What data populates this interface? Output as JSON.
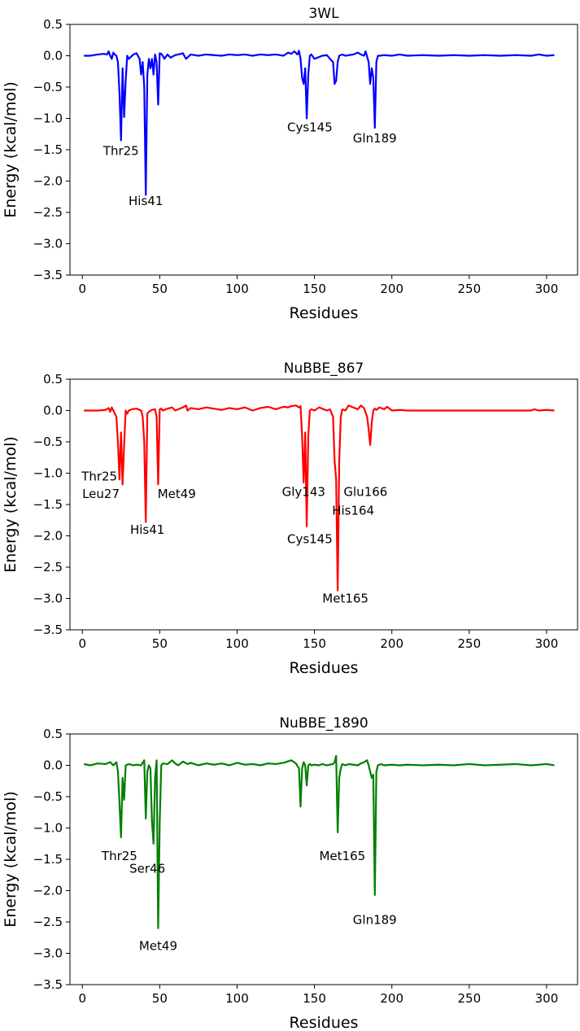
{
  "chart_data": [
    {
      "type": "line",
      "title": "3WL",
      "xlabel": "Residues",
      "ylabel": "Energy (kcal/mol)",
      "xlim": [
        -8,
        320
      ],
      "ylim": [
        -3.5,
        0.5
      ],
      "xticks": [
        0,
        50,
        100,
        150,
        200,
        250,
        300
      ],
      "yticks": [
        0.5,
        0.0,
        -0.5,
        -1.0,
        -1.5,
        -2.0,
        -2.5,
        -3.0,
        -3.5
      ],
      "grid": false,
      "series": [
        {
          "color": "#0000ff",
          "x": [
            1,
            5,
            10,
            14,
            16,
            17,
            18,
            19,
            20,
            21,
            22,
            23,
            24,
            25,
            26,
            27,
            28,
            29,
            30,
            33,
            35,
            37,
            38,
            39,
            40,
            41,
            42,
            43,
            44,
            45,
            46,
            47,
            48,
            49,
            50,
            51,
            52,
            53,
            55,
            57,
            60,
            62,
            65,
            67,
            70,
            75,
            80,
            85,
            90,
            95,
            100,
            105,
            110,
            115,
            120,
            125,
            130,
            133,
            135,
            137,
            139,
            140,
            141,
            142,
            143,
            144,
            145,
            146,
            147,
            148,
            150,
            155,
            158,
            160,
            162,
            163,
            164,
            165,
            166,
            168,
            170,
            175,
            178,
            180,
            182,
            183,
            185,
            186,
            187,
            188,
            189,
            190,
            191,
            192,
            195,
            200,
            205,
            210,
            220,
            230,
            240,
            250,
            260,
            270,
            280,
            290,
            295,
            300,
            305
          ],
          "y": [
            0.0,
            0.0,
            0.02,
            0.03,
            0.02,
            0.07,
            0.0,
            -0.05,
            0.05,
            0.02,
            0.0,
            -0.1,
            -0.6,
            -1.35,
            -0.2,
            -0.98,
            -0.4,
            0.0,
            -0.05,
            0.02,
            0.04,
            -0.05,
            -0.3,
            -0.1,
            -0.5,
            -2.22,
            -0.3,
            -0.05,
            -0.2,
            -0.05,
            -0.3,
            0.02,
            -0.1,
            -0.78,
            0.04,
            0.03,
            0.0,
            -0.05,
            0.02,
            -0.03,
            0.01,
            0.02,
            0.04,
            -0.05,
            0.02,
            0.0,
            0.02,
            0.01,
            0.0,
            0.02,
            0.01,
            0.02,
            0.0,
            0.02,
            0.01,
            0.02,
            0.0,
            0.05,
            0.03,
            0.07,
            0.02,
            0.08,
            -0.05,
            -0.35,
            -0.45,
            -0.2,
            -1.0,
            -0.3,
            0.0,
            0.02,
            -0.05,
            0.0,
            0.01,
            -0.05,
            -0.1,
            -0.45,
            -0.4,
            -0.1,
            0.0,
            0.02,
            0.0,
            0.02,
            0.05,
            0.02,
            0.0,
            0.07,
            -0.1,
            -0.45,
            -0.2,
            -0.35,
            -1.15,
            -0.1,
            0.0,
            0.0,
            0.01,
            0.0,
            0.02,
            0.0,
            0.01,
            0.0,
            0.01,
            0.0,
            0.01,
            0.0,
            0.01,
            0.0,
            0.02,
            0.0,
            0.01
          ]
        }
      ],
      "annotations": [
        {
          "text": "Thr25",
          "x": 25,
          "y": -1.52
        },
        {
          "text": "His41",
          "x": 41,
          "y": -2.32
        },
        {
          "text": "Cys145",
          "x": 147,
          "y": -1.14
        },
        {
          "text": "Gln189",
          "x": 189,
          "y": -1.32
        }
      ]
    },
    {
      "type": "line",
      "title": "NuBBE_867",
      "xlabel": "Residues",
      "ylabel": "Energy (kcal/mol)",
      "xlim": [
        -8,
        320
      ],
      "ylim": [
        -3.5,
        0.5
      ],
      "xticks": [
        0,
        50,
        100,
        150,
        200,
        250,
        300
      ],
      "yticks": [
        0.5,
        0.0,
        -0.5,
        -1.0,
        -1.5,
        -2.0,
        -2.5,
        -3.0,
        -3.5
      ],
      "grid": false,
      "series": [
        {
          "color": "#ff0000",
          "x": [
            1,
            5,
            10,
            15,
            17,
            18,
            19,
            20,
            21,
            22,
            23,
            24,
            25,
            26,
            27,
            28,
            29,
            30,
            32,
            35,
            38,
            39,
            40,
            41,
            42,
            43,
            45,
            47,
            48,
            49,
            50,
            51,
            52,
            55,
            58,
            60,
            65,
            67,
            68,
            70,
            75,
            80,
            85,
            90,
            95,
            100,
            105,
            110,
            115,
            120,
            125,
            130,
            133,
            135,
            138,
            140,
            141,
            142,
            143,
            144,
            145,
            146,
            147,
            148,
            150,
            153,
            155,
            158,
            160,
            162,
            163,
            164,
            165,
            166,
            167,
            168,
            170,
            172,
            175,
            178,
            180,
            182,
            184,
            185,
            186,
            187,
            188,
            189,
            190,
            192,
            195,
            197,
            200,
            205,
            210,
            215,
            220,
            230,
            240,
            250,
            260,
            270,
            280,
            290,
            292,
            295,
            300,
            305
          ],
          "y": [
            0.0,
            0.0,
            0.0,
            0.01,
            0.04,
            -0.02,
            0.05,
            0.0,
            -0.05,
            -0.1,
            -0.5,
            -1.1,
            -0.35,
            -1.18,
            -0.55,
            0.0,
            -0.05,
            0.0,
            0.02,
            0.03,
            0.0,
            -0.1,
            -0.5,
            -1.78,
            -0.05,
            -0.02,
            0.01,
            0.02,
            -0.1,
            -1.18,
            0.02,
            0.03,
            0.0,
            0.03,
            0.05,
            0.0,
            0.05,
            0.08,
            0.0,
            0.04,
            0.02,
            0.05,
            0.03,
            0.01,
            0.04,
            0.02,
            0.05,
            0.0,
            0.04,
            0.06,
            0.02,
            0.06,
            0.05,
            0.07,
            0.08,
            0.05,
            0.07,
            -0.4,
            -1.15,
            -0.35,
            -1.85,
            -0.4,
            0.0,
            0.02,
            0.0,
            0.05,
            0.03,
            0.0,
            0.02,
            -0.1,
            -0.8,
            -1.1,
            -2.87,
            -0.8,
            -0.1,
            0.02,
            0.0,
            0.08,
            0.05,
            0.02,
            0.08,
            0.04,
            -0.1,
            -0.3,
            -0.55,
            -0.2,
            0.0,
            0.03,
            0.01,
            0.05,
            0.02,
            0.06,
            0.0,
            0.01,
            0.0,
            0.0,
            0.0,
            0.0,
            0.0,
            0.0,
            0.0,
            0.0,
            0.0,
            0.0,
            0.02,
            0.0,
            0.01,
            0.0
          ]
        }
      ],
      "annotations": [
        {
          "text": "Thr25",
          "x": 11,
          "y": -1.05
        },
        {
          "text": "Leu27",
          "x": 12,
          "y": -1.33
        },
        {
          "text": "Met49",
          "x": 61,
          "y": -1.33
        },
        {
          "text": "His41",
          "x": 42,
          "y": -1.9
        },
        {
          "text": "Gly143",
          "x": 143,
          "y": -1.3
        },
        {
          "text": "Glu166",
          "x": 183,
          "y": -1.3
        },
        {
          "text": "His164",
          "x": 175,
          "y": -1.6
        },
        {
          "text": "Cys145",
          "x": 147,
          "y": -2.05
        },
        {
          "text": "Met165",
          "x": 170,
          "y": -3.0
        }
      ]
    },
    {
      "type": "line",
      "title": "NuBBE_1890",
      "xlabel": "Residues",
      "ylabel": "Energy (kcal/mol)",
      "xlim": [
        -8,
        320
      ],
      "ylim": [
        -3.5,
        0.5
      ],
      "xticks": [
        0,
        50,
        100,
        150,
        200,
        250,
        300
      ],
      "yticks": [
        0.5,
        0.0,
        -0.5,
        -1.0,
        -1.5,
        -2.0,
        -2.5,
        -3.0,
        -3.5
      ],
      "grid": false,
      "series": [
        {
          "color": "#007f00",
          "x": [
            1,
            5,
            10,
            15,
            18,
            20,
            22,
            23,
            24,
            25,
            26,
            27,
            28,
            30,
            33,
            35,
            38,
            40,
            41,
            42,
            43,
            44,
            45,
            46,
            47,
            48,
            49,
            50,
            51,
            52,
            55,
            58,
            60,
            62,
            65,
            68,
            70,
            75,
            80,
            85,
            90,
            95,
            100,
            105,
            110,
            115,
            120,
            125,
            130,
            135,
            138,
            140,
            141,
            142,
            143,
            144,
            145,
            146,
            147,
            148,
            150,
            153,
            155,
            158,
            160,
            162,
            163,
            164,
            165,
            166,
            167,
            168,
            170,
            172,
            175,
            178,
            180,
            182,
            184,
            185,
            186,
            187,
            188,
            189,
            190,
            191,
            193,
            195,
            200,
            205,
            210,
            220,
            230,
            240,
            250,
            260,
            270,
            280,
            290,
            300,
            305
          ],
          "y": [
            0.02,
            0.0,
            0.03,
            0.02,
            0.05,
            0.0,
            0.05,
            -0.1,
            -0.6,
            -1.15,
            -0.2,
            -0.55,
            0.0,
            0.02,
            0.0,
            0.01,
            0.0,
            0.08,
            -0.85,
            -0.1,
            0.0,
            -0.05,
            -0.9,
            -1.25,
            -0.2,
            0.08,
            -2.6,
            -0.9,
            0.0,
            0.03,
            0.02,
            0.08,
            0.03,
            0.0,
            0.06,
            0.02,
            0.04,
            0.0,
            0.03,
            0.01,
            0.03,
            0.0,
            0.04,
            0.01,
            0.02,
            0.0,
            0.03,
            0.02,
            0.04,
            0.08,
            0.03,
            -0.05,
            -0.66,
            -0.05,
            0.05,
            0.0,
            -0.32,
            0.0,
            0.02,
            0.0,
            0.01,
            0.0,
            0.02,
            0.0,
            0.01,
            0.02,
            0.05,
            0.15,
            -1.07,
            -0.2,
            -0.05,
            0.02,
            0.0,
            0.02,
            0.01,
            0.0,
            0.03,
            0.05,
            0.08,
            0.0,
            -0.1,
            -0.2,
            -0.15,
            -2.07,
            -0.1,
            0.0,
            0.02,
            0.0,
            0.01,
            0.0,
            0.01,
            0.0,
            0.01,
            0.0,
            0.02,
            0.0,
            0.01,
            0.02,
            0.0,
            0.02,
            0.0
          ]
        }
      ],
      "annotations": [
        {
          "text": "Thr25",
          "x": 24,
          "y": -1.45
        },
        {
          "text": "Ser46",
          "x": 42,
          "y": -1.65
        },
        {
          "text": "Met165",
          "x": 168,
          "y": -1.45
        },
        {
          "text": "Gln189",
          "x": 189,
          "y": -2.47
        },
        {
          "text": "Met49",
          "x": 49,
          "y": -2.88
        }
      ]
    }
  ]
}
